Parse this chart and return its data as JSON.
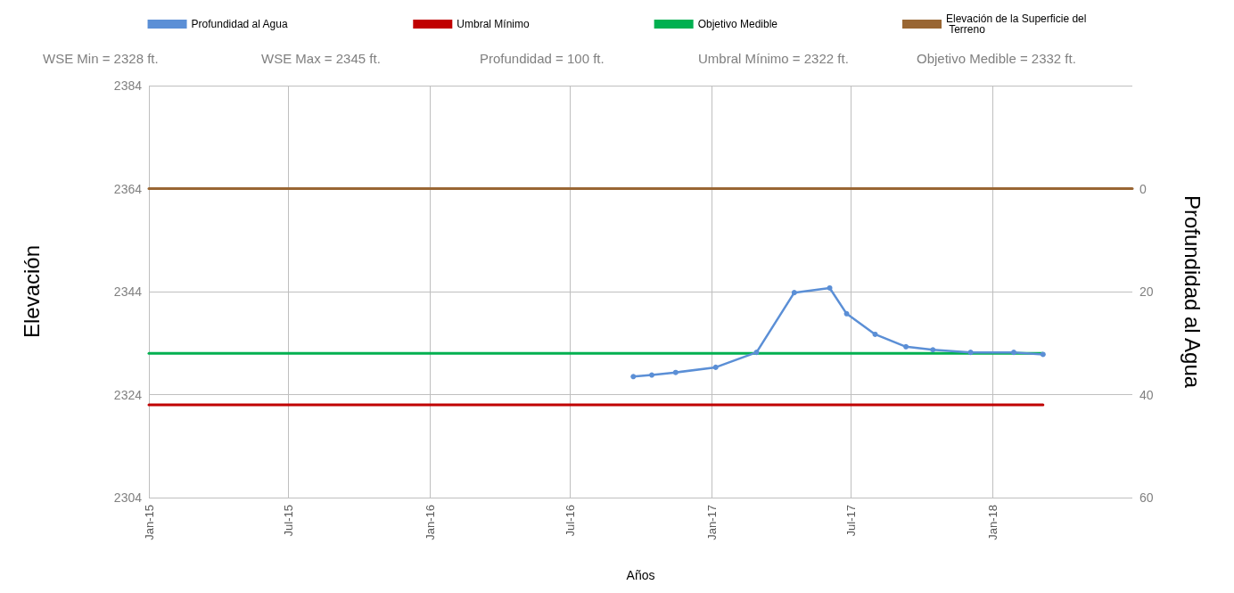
{
  "chart_data": {
    "type": "line",
    "xlabel": "Años",
    "ylabel": "Elevación",
    "y2label": "Profundidad al Agua",
    "annotations": [
      "WSE Min = 2328 ft.",
      "WSE Max = 2345 ft.",
      "Profundidad = 100 ft.",
      "Umbral Mínimo = 2322 ft.",
      "Objetivo Medible = 2332 ft."
    ],
    "xlim": [
      "2015-01-01",
      "2018-07-01"
    ],
    "xticks": [
      {
        "value": "2015-01-01",
        "label": "Jan-15"
      },
      {
        "value": "2015-07-01",
        "label": "Jul-15"
      },
      {
        "value": "2016-01-01",
        "label": "Jan-16"
      },
      {
        "value": "2016-07-01",
        "label": "Jul-16"
      },
      {
        "value": "2017-01-01",
        "label": "Jan-17"
      },
      {
        "value": "2017-07-01",
        "label": "Jul-17"
      },
      {
        "value": "2018-01-01",
        "label": "Jan-18"
      }
    ],
    "ylim": [
      2304,
      2384
    ],
    "yticks": [
      2304,
      2324,
      2344,
      2364,
      2384
    ],
    "y2lim": [
      60,
      -20
    ],
    "y2ticks": [
      0,
      20,
      40,
      60
    ],
    "grid": true,
    "legend": "top",
    "series": [
      {
        "name": "Profundidad al Agua",
        "color": "#5b8fd6",
        "marker": "circle",
        "x": [
          "2016-09-21",
          "2016-10-15",
          "2016-11-15",
          "2017-01-06",
          "2017-02-28",
          "2017-04-18",
          "2017-06-03",
          "2017-06-25",
          "2017-08-01",
          "2017-09-10",
          "2017-10-15",
          "2017-12-03",
          "2018-01-28",
          "2018-03-07"
        ],
        "values": [
          2327.5,
          2327.8,
          2328.3,
          2329.3,
          2332.2,
          2343.8,
          2344.7,
          2339.7,
          2335.7,
          2333.3,
          2332.7,
          2332.2,
          2332.2,
          2331.8
        ]
      },
      {
        "name": "Umbral Mínimo",
        "color": "#c00000",
        "marker": "none",
        "x": [
          "2015-01-01",
          "2018-03-07"
        ],
        "values": [
          2322,
          2322
        ]
      },
      {
        "name": "Objetivo Medible",
        "color": "#00b050",
        "marker": "none",
        "x": [
          "2015-01-01",
          "2018-03-07"
        ],
        "values": [
          2332,
          2332
        ]
      },
      {
        "name": "Elevación de la Superficie del Terreno",
        "color": "#996633",
        "marker": "none",
        "x": [
          "2015-01-01",
          "2018-07-01"
        ],
        "values": [
          2364,
          2364
        ]
      }
    ]
  }
}
